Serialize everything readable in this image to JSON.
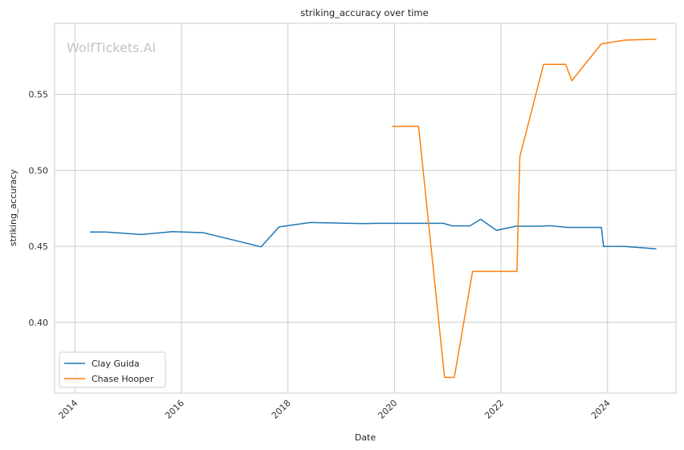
{
  "chart_data": {
    "type": "line",
    "title": "striking_accuracy over time",
    "xlabel": "Date",
    "ylabel": "striking_accuracy",
    "watermark": "WolfTickets.AI",
    "grid": true,
    "legend_position": "lower-left",
    "x_ticks": [
      "2014",
      "2016",
      "2018",
      "2020",
      "2022",
      "2024"
    ],
    "y_ticks": [
      "0.40",
      "0.45",
      "0.50",
      "0.55"
    ],
    "xlim": [
      "2013-08-15",
      "2025-04-15"
    ],
    "ylim": [
      0.3535,
      0.5968
    ],
    "series": [
      {
        "name": "Clay Guida",
        "color": "#1f77b4",
        "points": [
          [
            "2014-04-15",
            0.4595
          ],
          [
            "2014-08-01",
            0.4595
          ],
          [
            "2015-04-01",
            0.4578
          ],
          [
            "2015-11-01",
            0.4597
          ],
          [
            "2016-06-01",
            0.459
          ],
          [
            "2017-07-01",
            0.4497
          ],
          [
            "2017-11-01",
            0.4628
          ],
          [
            "2018-06-01",
            0.4657
          ],
          [
            "2019-06-01",
            0.465
          ],
          [
            "2019-09-01",
            0.4652
          ],
          [
            "2020-07-01",
            0.4652
          ],
          [
            "2020-12-01",
            0.4652
          ],
          [
            "2021-02-01",
            0.4635
          ],
          [
            "2021-06-01",
            0.4635
          ],
          [
            "2021-08-15",
            0.4678
          ],
          [
            "2021-12-01",
            0.4606
          ],
          [
            "2022-04-15",
            0.4633
          ],
          [
            "2022-10-01",
            0.4633
          ],
          [
            "2022-12-01",
            0.4636
          ],
          [
            "2023-04-01",
            0.4625
          ],
          [
            "2023-11-20",
            0.4625
          ],
          [
            "2023-12-05",
            0.45
          ],
          [
            "2024-05-01",
            0.45
          ],
          [
            "2024-12-01",
            0.4484
          ]
        ]
      },
      {
        "name": "Chase Hooper",
        "color": "#ff7f0e",
        "points": [
          [
            "2019-12-15",
            0.529
          ],
          [
            "2020-06-15",
            0.529
          ],
          [
            "2020-12-10",
            0.3638
          ],
          [
            "2021-02-15",
            0.3638
          ],
          [
            "2021-06-20",
            0.4335
          ],
          [
            "2022-04-20",
            0.4335
          ],
          [
            "2022-05-10",
            0.509
          ],
          [
            "2022-10-20",
            0.5698
          ],
          [
            "2023-03-20",
            0.5698
          ],
          [
            "2023-05-01",
            0.559
          ],
          [
            "2023-11-20",
            0.5833
          ],
          [
            "2024-05-01",
            0.5857
          ],
          [
            "2024-12-01",
            0.5863
          ]
        ]
      }
    ]
  }
}
